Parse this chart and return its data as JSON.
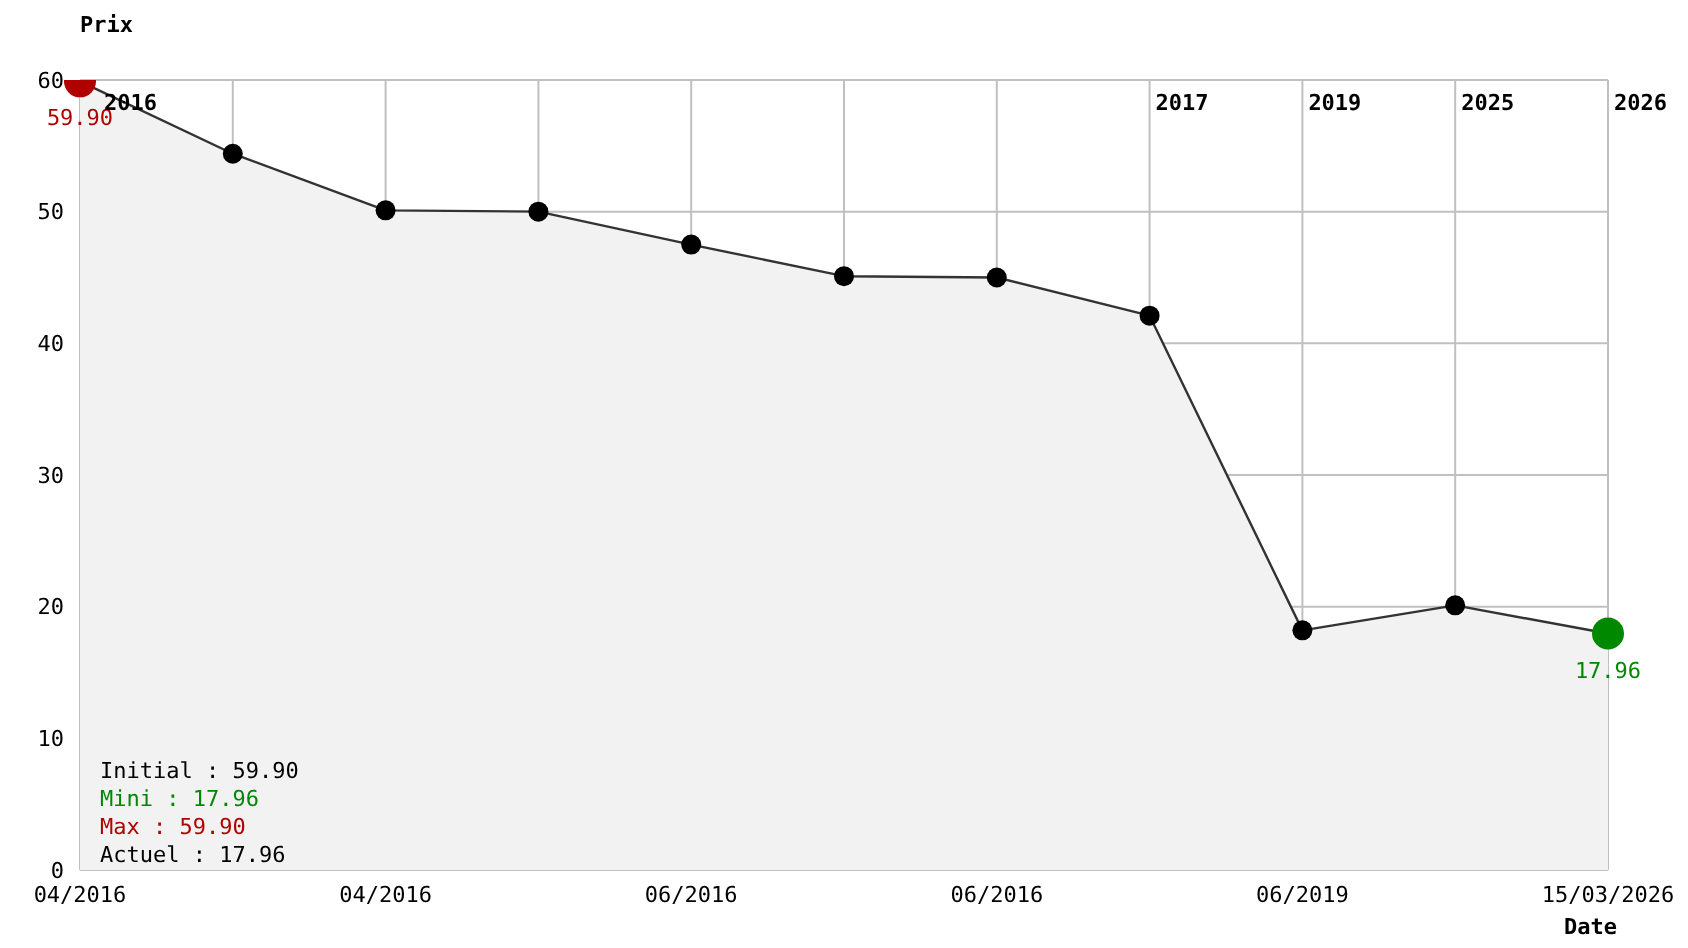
{
  "chart_data": {
    "type": "area",
    "ylabel": "Prix",
    "xlabel": "Date",
    "categories": [
      "04/2016",
      null,
      "04/2016",
      null,
      "06/2016",
      null,
      "06/2016",
      null,
      "06/2019",
      null,
      "15/03/2026"
    ],
    "series": [
      {
        "color": "#333333",
        "colors": [
          "#b00000",
          "#000000",
          "#000000",
          "#000000",
          "#000000",
          "#000000",
          "#000000",
          "#000000",
          "#000000",
          "#000000",
          "#008800"
        ],
        "values": [
          59.9,
          54.4,
          50.1,
          50.0,
          47.5,
          45.1,
          45.0,
          42.1,
          18.2,
          20.1,
          17.96
        ],
        "value_labels": [
          "59.90",
          null,
          null,
          null,
          null,
          null,
          null,
          null,
          null,
          null,
          "17.96"
        ]
      }
    ],
    "ylim": [
      0,
      60
    ],
    "yticks": [
      0,
      10,
      20,
      30,
      40,
      50,
      60
    ],
    "grid": true,
    "marker": "circle",
    "annotations": [
      "2016",
      "2017",
      "2019",
      "2025",
      "2026",
      "Initial : 59.90",
      "Mini : 17.96",
      "Max : 59.90",
      "Actuel : 17.96"
    ]
  }
}
